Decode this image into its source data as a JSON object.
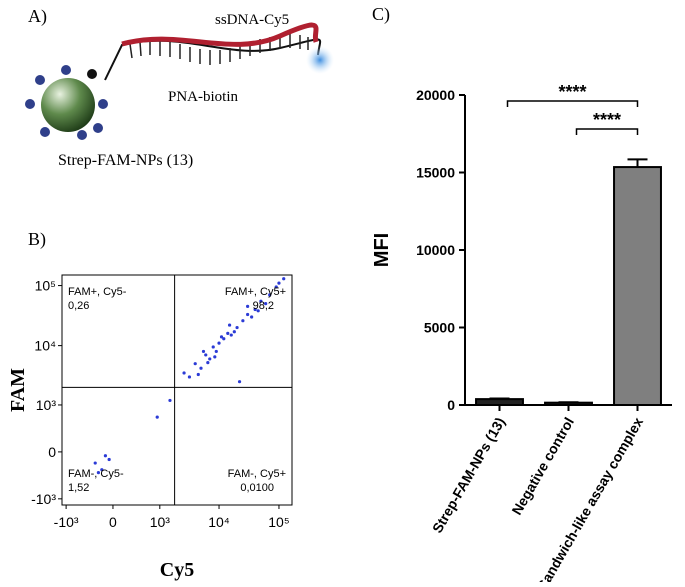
{
  "panels": {
    "a": "A)",
    "b": "B)",
    "c": "C)"
  },
  "diagram": {
    "labels": {
      "dna": "ssDNA-Cy5",
      "pna": "PNA-biotin",
      "np": "Strep-FAM-NPs (13)"
    }
  },
  "chart_data": [
    {
      "type": "scatter",
      "xlabel": "Cy5",
      "ylabel": "FAM",
      "xscale": "biexponential",
      "yscale": "biexponential",
      "xlim": [
        -1180,
        165000
      ],
      "ylim": [
        -1280,
        150000
      ],
      "xticks": [
        {
          "value": -1000,
          "label": "-10³"
        },
        0,
        {
          "value": 1000,
          "label": "10³"
        },
        {
          "value": 10000,
          "label": "10⁴"
        },
        {
          "value": 100000,
          "label": "10⁵"
        }
      ],
      "yticks": [
        {
          "value": -1000,
          "label": "-10³"
        },
        0,
        {
          "value": 1000,
          "label": "10³"
        },
        {
          "value": 10000,
          "label": "10⁴"
        },
        {
          "value": 100000,
          "label": "10⁵"
        }
      ],
      "xgate": 1800,
      "ygate": 2000,
      "color": "#2b3bd6",
      "x": [
        2600,
        3200,
        4000,
        5000,
        6000,
        7000,
        8000,
        9000,
        10000,
        12000,
        14000,
        16000,
        20000,
        25000,
        30000,
        40000,
        50000,
        70000,
        90000,
        120000,
        4500,
        6500,
        11000,
        18000,
        35000,
        1500,
        30000,
        60000,
        -250,
        -150,
        -100,
        -50,
        -200,
        22000,
        900,
        5500,
        8500,
        15000,
        45000,
        100000
      ],
      "values": [
        3500,
        3000,
        5000,
        4200,
        7000,
        6000,
        9500,
        8000,
        11000,
        13000,
        16000,
        15000,
        20000,
        26000,
        33000,
        40000,
        55000,
        70000,
        95000,
        130000,
        3300,
        5200,
        14000,
        17000,
        30000,
        1200,
        45000,
        50000,
        -150,
        -250,
        -50,
        -100,
        -300,
        2500,
        600,
        8000,
        6500,
        22000,
        38000,
        110000
      ],
      "quadrants": [
        {
          "name": "FAM+, Cy5-",
          "value": 0.26,
          "value_label": "0,26"
        },
        {
          "name": "FAM+, Cy5+",
          "value": 98.2,
          "value_label": "98,2"
        },
        {
          "name": "FAM-, Cy5-",
          "value": 1.52,
          "value_label": "1,52"
        },
        {
          "name": "FAM-, Cy5+",
          "value": 0.01,
          "value_label": "0,0100"
        }
      ]
    },
    {
      "type": "bar",
      "ylabel": "MFI",
      "categories": [
        "Strep-FAM-NPs (13)",
        "Negative control",
        "Sandwich-like assay complex"
      ],
      "values": [
        380,
        150,
        15350
      ],
      "errors": [
        40,
        30,
        500
      ],
      "colors": [
        "#222222",
        "#222222",
        "#7f7f7f"
      ],
      "ylim": [
        0,
        20000
      ],
      "yticks": [
        0,
        5000,
        10000,
        15000,
        20000
      ],
      "significance": [
        {
          "label": "****",
          "groups": [
            0,
            2
          ]
        },
        {
          "label": "****",
          "groups": [
            1,
            2
          ]
        }
      ]
    }
  ]
}
